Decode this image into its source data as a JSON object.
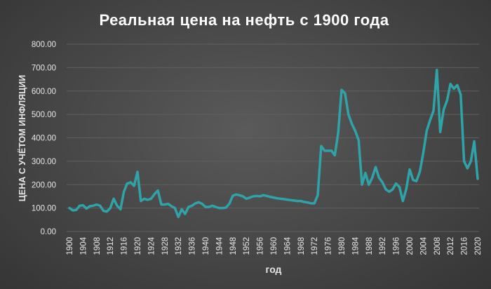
{
  "chart_data": {
    "type": "line",
    "title": "Реальная цена на нефть с 1900 года",
    "xlabel": "год",
    "ylabel": "ЦЕНА С УЧЁТОМ ИНФЛЯЦИИ",
    "xlim": [
      1900,
      2020
    ],
    "ylim": [
      0,
      800
    ],
    "grid": true,
    "line_color": "#2fa3a8",
    "background_color": "#474747",
    "yticks": [
      "0.00",
      "100.00",
      "200.00",
      "300.00",
      "400.00",
      "500.00",
      "600.00",
      "700.00",
      "800.00"
    ],
    "xticks": [
      "1900",
      "1904",
      "1908",
      "1912",
      "1916",
      "1920",
      "1924",
      "1928",
      "1932",
      "1936",
      "1940",
      "1944",
      "1948",
      "1952",
      "1956",
      "1960",
      "1964",
      "1968",
      "1972",
      "1976",
      "1980",
      "1984",
      "1988",
      "1992",
      "1996",
      "2000",
      "2004",
      "2008",
      "2012",
      "2016",
      "2020"
    ],
    "series": [
      {
        "name": "",
        "x": [
          1900,
          1901,
          1902,
          1903,
          1904,
          1905,
          1906,
          1907,
          1908,
          1909,
          1910,
          1911,
          1912,
          1913,
          1914,
          1915,
          1916,
          1917,
          1918,
          1919,
          1920,
          1921,
          1922,
          1923,
          1924,
          1925,
          1926,
          1927,
          1928,
          1929,
          1930,
          1931,
          1932,
          1933,
          1934,
          1935,
          1936,
          1937,
          1938,
          1939,
          1940,
          1941,
          1942,
          1943,
          1944,
          1945,
          1946,
          1947,
          1948,
          1949,
          1950,
          1951,
          1952,
          1953,
          1954,
          1955,
          1956,
          1957,
          1958,
          1959,
          1960,
          1961,
          1962,
          1963,
          1964,
          1965,
          1966,
          1967,
          1968,
          1969,
          1970,
          1971,
          1972,
          1973,
          1974,
          1975,
          1976,
          1977,
          1978,
          1979,
          1980,
          1981,
          1982,
          1983,
          1984,
          1985,
          1986,
          1987,
          1988,
          1989,
          1990,
          1991,
          1992,
          1993,
          1994,
          1995,
          1996,
          1997,
          1998,
          1999,
          2000,
          2001,
          2002,
          2003,
          2004,
          2005,
          2006,
          2007,
          2008,
          2009,
          2010,
          2011,
          2012,
          2013,
          2014,
          2015,
          2016,
          2017,
          2018,
          2019,
          2020
        ],
        "values": [
          100,
          90,
          92,
          110,
          112,
          98,
          108,
          110,
          115,
          110,
          88,
          85,
          100,
          140,
          110,
          95,
          170,
          205,
          210,
          195,
          255,
          130,
          140,
          135,
          140,
          160,
          175,
          115,
          115,
          118,
          108,
          100,
          62,
          95,
          75,
          105,
          110,
          120,
          125,
          118,
          105,
          105,
          110,
          105,
          100,
          100,
          102,
          118,
          152,
          158,
          155,
          150,
          140,
          145,
          150,
          152,
          150,
          155,
          152,
          148,
          145,
          142,
          140,
          138,
          136,
          134,
          132,
          130,
          130,
          126,
          124,
          120,
          120,
          155,
          365,
          345,
          345,
          345,
          325,
          420,
          605,
          590,
          500,
          460,
          430,
          390,
          200,
          250,
          200,
          230,
          275,
          230,
          210,
          180,
          170,
          180,
          205,
          190,
          130,
          180,
          265,
          220,
          215,
          255,
          335,
          430,
          475,
          515,
          690,
          425,
          520,
          560,
          630,
          610,
          625,
          585,
          300,
          270,
          300,
          385,
          225
        ]
      }
    ]
  }
}
